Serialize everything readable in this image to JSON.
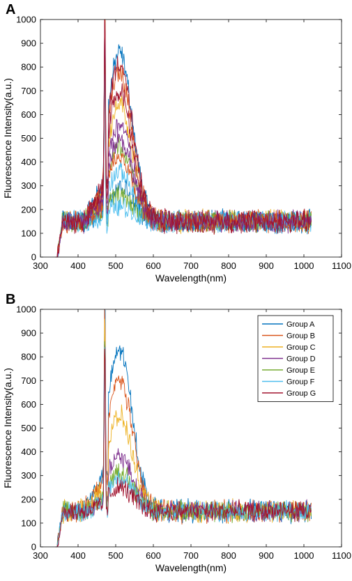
{
  "chart_data": [
    {
      "type": "line",
      "panel_label": "A",
      "title": "",
      "xlabel": "Wavelength(nm)",
      "ylabel": "Fluorescence Intensity(a.u.)",
      "xlim": [
        300,
        1100
      ],
      "ylim": [
        0,
        1000
      ],
      "xticks": [
        300,
        400,
        500,
        600,
        700,
        800,
        900,
        1000,
        1100
      ],
      "yticks": [
        0,
        100,
        200,
        300,
        400,
        500,
        600,
        700,
        800,
        900,
        1000
      ],
      "grid": false,
      "legend": "none",
      "description": "many overlaid spectra",
      "series": [
        {
          "color": "#0072BD",
          "peak_470": 960,
          "peak_510": 860
        },
        {
          "color": "#D95319",
          "peak_470": 930,
          "peak_510": 780
        },
        {
          "color": "#EDB120",
          "peak_470": 900,
          "peak_510": 640
        },
        {
          "color": "#7E2F8E",
          "peak_470": 880,
          "peak_510": 560
        },
        {
          "color": "#77AC30",
          "peak_470": 860,
          "peak_510": 470
        },
        {
          "color": "#4DBEEE",
          "peak_470": 850,
          "peak_510": 360
        },
        {
          "color": "#A2142F",
          "peak_470": 870,
          "peak_510": 820
        },
        {
          "color": "#0072BD",
          "peak_470": 840,
          "peak_510": 300
        },
        {
          "color": "#77AC30",
          "peak_470": 830,
          "peak_510": 260
        },
        {
          "color": "#4DBEEE",
          "peak_470": 820,
          "peak_510": 215
        },
        {
          "color": "#D95319",
          "peak_470": 880,
          "peak_510": 420
        },
        {
          "color": "#7E2F8E",
          "peak_470": 860,
          "peak_510": 500
        },
        {
          "color": "#A2142F",
          "peak_470": 900,
          "peak_510": 700
        }
      ]
    },
    {
      "type": "line",
      "panel_label": "B",
      "title": "",
      "xlabel": "Wavelength(nm)",
      "ylabel": "Fluorescence Intensity(a.u.)",
      "xlim": [
        300,
        1100
      ],
      "ylim": [
        0,
        1000
      ],
      "xticks": [
        300,
        400,
        500,
        600,
        700,
        800,
        900,
        1000,
        1100
      ],
      "yticks": [
        0,
        100,
        200,
        300,
        400,
        500,
        600,
        700,
        800,
        900,
        1000
      ],
      "grid": false,
      "legend": "top-right",
      "series": [
        {
          "name": "Group A",
          "color": "#0072BD",
          "peak_470": 900,
          "peak_510": 830
        },
        {
          "name": "Group B",
          "color": "#D95319",
          "peak_470": 890,
          "peak_510": 710
        },
        {
          "name": "Group C",
          "color": "#EDB120",
          "peak_470": 880,
          "peak_510": 550
        },
        {
          "name": "Group D",
          "color": "#7E2F8E",
          "peak_470": 870,
          "peak_510": 380
        },
        {
          "name": "Group E",
          "color": "#77AC30",
          "peak_470": 860,
          "peak_510": 320
        },
        {
          "name": "Group F",
          "color": "#4DBEEE",
          "peak_470": 860,
          "peak_510": 290
        },
        {
          "name": "Group G",
          "color": "#A2142F",
          "peak_470": 850,
          "peak_510": 250
        }
      ]
    }
  ]
}
